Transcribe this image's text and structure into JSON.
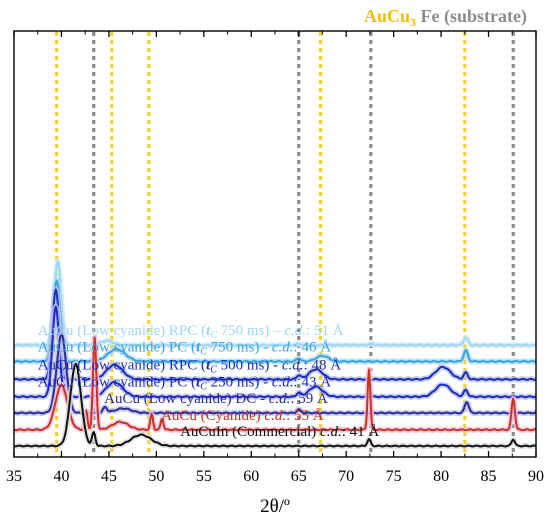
{
  "chart_data": {
    "type": "line",
    "title": "",
    "xlabel": "2θ/º",
    "ylabel": "",
    "xlim": [
      35,
      90
    ],
    "xticks": [
      35,
      40,
      45,
      50,
      55,
      60,
      65,
      70,
      75,
      80,
      85,
      90
    ],
    "grid": false,
    "legend": {
      "placement": "top-right",
      "entries": [
        {
          "text": "AuCu",
          "sub": "3",
          "color": "#f0c000",
          "line_style": "dotted"
        },
        {
          "text": "Fe (substrate)",
          "sub": "",
          "color": "#8c8c8c",
          "line_style": "dotted"
        }
      ]
    },
    "reference_lines": [
      {
        "phase": "AuCu3",
        "color": "#f2d32a",
        "x": [
          39.5,
          45.3,
          49.2,
          67.3,
          82.5
        ]
      },
      {
        "phase": "Fe (substrate)",
        "color": "#8c8c8c",
        "x": [
          43.4,
          65.0,
          72.6,
          87.6
        ]
      }
    ],
    "series": [
      {
        "name": "AuCu (Low cyanide) RPC (tC 750 ms) – c.d.: 51 Å",
        "label": {
          "pre": "AuCu (Low cyanide) RPC (",
          "t": "t",
          "tsub": "C",
          "mid": " 750 ms) – ",
          "cd": "c.d.",
          "post": ": 51 Å"
        },
        "color": "#9fd6f4",
        "halo": "#cfeaf9",
        "offset": 9,
        "label_x": 37.5,
        "peaks": [
          [
            39.6,
            7.5,
            0.5
          ],
          [
            44.8,
            0.4,
            0.9
          ],
          [
            65.0,
            0.15,
            0.3
          ],
          [
            72.7,
            0.15,
            0.3
          ],
          [
            82.6,
            0.7,
            0.3
          ]
        ]
      },
      {
        "name": "AuCu (Low cyanide) PC (tC 750 ms) - c.d.: 46 Å",
        "label": {
          "pre": "AuCu (Low cyanide) PC (",
          "t": "t",
          "tsub": "C",
          "mid": " 750 ms) - ",
          "cd": "c.d.",
          "post": ": 46 Å"
        },
        "color": "#3aa4dd",
        "halo": "#b3dcf3",
        "offset": 7.55,
        "label_x": 37.5,
        "peaks": [
          [
            39.5,
            7.2,
            0.55
          ],
          [
            45.8,
            1.1,
            1.3
          ],
          [
            65.0,
            0.3,
            0.3
          ],
          [
            67.5,
            0.5,
            0.9
          ],
          [
            82.6,
            1.0,
            0.3
          ]
        ]
      },
      {
        "name": "AuCu (Low cyanide) RPC (tC 500 ms) - c.d.: 48 Å",
        "label": {
          "pre": "AuCu (Low cyanide) RPC (",
          "t": "t",
          "tsub": "C",
          "mid": " 500 ms) -  ",
          "cd": "c.d.",
          "post": ": 48 Å"
        },
        "color": "#1b2fb5",
        "halo": "#b9c0ee",
        "offset": 5.95,
        "label_x": 37.5,
        "peaks": [
          [
            39.4,
            8.0,
            0.5
          ],
          [
            45.6,
            1.3,
            1.2
          ],
          [
            65.0,
            0.35,
            0.3
          ],
          [
            66.8,
            0.9,
            1.0
          ],
          [
            80.2,
            1.1,
            1.1
          ],
          [
            82.6,
            0.6,
            0.3
          ]
        ]
      },
      {
        "name": "AuCu (Low cyanide) PC (tC 250 ms) - c.d.: 43 Å",
        "label": {
          "pre": "AuCu (Low cyanide) PC (",
          "t": "t",
          "tsub": "C",
          "mid": " 250 ms) - ",
          "cd": "c.d.",
          "post": ": 43 Å"
        },
        "color": "#1a28c8",
        "halo": "#bcc3f1",
        "offset": 4.4,
        "label_x": 37.5,
        "peaks": [
          [
            39.4,
            8.0,
            0.5
          ],
          [
            45.6,
            1.3,
            1.2
          ],
          [
            65.0,
            0.35,
            0.3
          ],
          [
            66.8,
            0.9,
            1.0
          ],
          [
            80.2,
            1.1,
            1.1
          ],
          [
            82.6,
            0.6,
            0.3
          ]
        ]
      },
      {
        "name": "AuCu (Low cyanide) DC - c.d.: 59 Å",
        "label": {
          "pre": "AuCu (Low cyanide) DC - ",
          "t": "",
          "tsub": "",
          "mid": "",
          "cd": "c.d.",
          "post": ": 59 Å"
        },
        "color": "#2a2a98",
        "halo": "#c1c3e6",
        "offset": 2.95,
        "label_x": 44.5,
        "peaks": [
          [
            40.0,
            7.0,
            0.7
          ],
          [
            44.6,
            0.5,
            0.3
          ],
          [
            46.5,
            0.4,
            1.2
          ],
          [
            65.0,
            0.3,
            0.3
          ],
          [
            82.7,
            1.0,
            0.3
          ]
        ]
      },
      {
        "name": "AuCu (Cyanide) c.d.: 55 Å",
        "label": {
          "pre": "AuCu (Cyanide) ",
          "t": "",
          "tsub": "",
          "mid": "",
          "cd": "c.d.",
          "post": ": 55 Å"
        },
        "color": "#c8321e",
        "halo": "#f4c2e4",
        "offset": 1.45,
        "label_x": 50.5,
        "peaks": [
          [
            40.0,
            4.0,
            0.9
          ],
          [
            42.6,
            1.7,
            0.2
          ],
          [
            43.5,
            8.2,
            0.25
          ],
          [
            46.2,
            0.7,
            1.2
          ],
          [
            49.5,
            1.4,
            0.2
          ],
          [
            50.6,
            1.0,
            0.2
          ],
          [
            72.4,
            5.4,
            0.2
          ],
          [
            87.6,
            2.8,
            0.25
          ]
        ]
      },
      {
        "name": "AuCuIn (Commercial) c.d.: 41 Å",
        "label": {
          "pre": "AuCuIn (Commercial) ",
          "t": "",
          "tsub": "",
          "mid": "",
          "cd": "c.d.",
          "post": ": 41 Å"
        },
        "color": "#111111",
        "halo": "#dddddd",
        "offset": 0,
        "label_x": 52.5,
        "peaks": [
          [
            41.5,
            7.3,
            0.8
          ],
          [
            43.4,
            1.2,
            0.25
          ],
          [
            48.4,
            1.0,
            1.5
          ],
          [
            72.4,
            0.6,
            0.25
          ],
          [
            87.6,
            0.6,
            0.25
          ]
        ]
      }
    ]
  }
}
